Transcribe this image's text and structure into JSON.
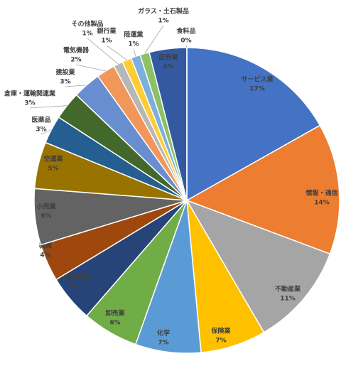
{
  "chart_data": {
    "type": "pie",
    "categories": [
      "サービス業",
      "情報・通信",
      "不動産業",
      "保険業",
      "化学",
      "卸売業",
      "輸送用機器",
      "機械",
      "小売業",
      "空運業",
      "医薬品",
      "倉庫・運輸関連業",
      "建設業",
      "電気機器",
      "その他製品",
      "銀行業",
      "陸運業",
      "ガラス・土石製品",
      "証券業",
      "食料品"
    ],
    "values": [
      17,
      14,
      11,
      7,
      7,
      6,
      5,
      4,
      6,
      5,
      3,
      3,
      3,
      2,
      1,
      1,
      1,
      1,
      4,
      0
    ],
    "value_labels": [
      "17%",
      "14%",
      "11%",
      "7%",
      "7%",
      "6%",
      "5%",
      "4%",
      "6%",
      "5%",
      "3%",
      "3%",
      "3%",
      "2%",
      "1%",
      "1%",
      "1%",
      "1%",
      "4%",
      "0%"
    ],
    "colors": [
      "#4472c4",
      "#ed7d31",
      "#a5a5a5",
      "#ffc000",
      "#5b9bd5",
      "#70ad47",
      "#264478",
      "#9e480e",
      "#636363",
      "#997300",
      "#255e91",
      "#43682b",
      "#698ed0",
      "#f1975a",
      "#b7b7b7",
      "#ffcd33",
      "#7cafdd",
      "#8cc168",
      "#335aa1",
      "#d26012"
    ]
  }
}
